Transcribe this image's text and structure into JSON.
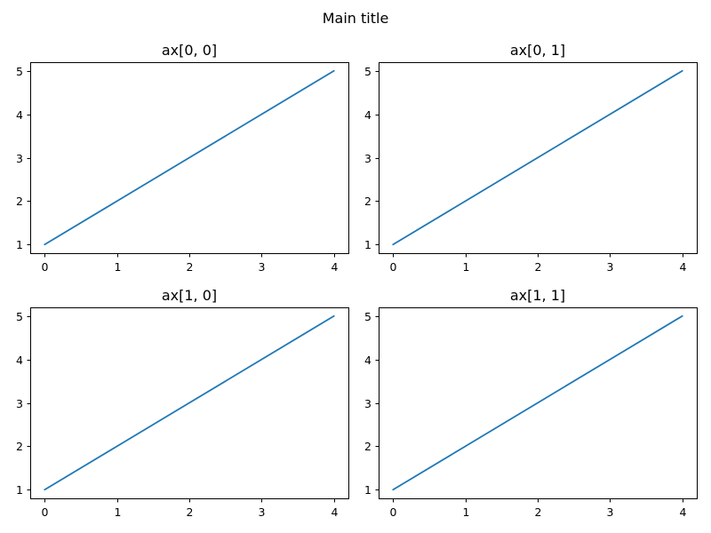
{
  "suptitle": "Main title",
  "chart_data": [
    {
      "type": "line",
      "title": "ax[0, 0]",
      "xlabel": "",
      "ylabel": "",
      "x": [
        0,
        1,
        2,
        3,
        4
      ],
      "series": [
        {
          "values": [
            1,
            2,
            3,
            4,
            5
          ],
          "color": "#1f77b4"
        }
      ],
      "xticks": [
        0,
        1,
        2,
        3,
        4
      ],
      "yticks": [
        1,
        2,
        3,
        4,
        5
      ],
      "xlim": [
        -0.2,
        4.2
      ],
      "ylim": [
        0.8,
        5.2
      ],
      "grid": false
    },
    {
      "type": "line",
      "title": "ax[0, 1]",
      "xlabel": "",
      "ylabel": "",
      "x": [
        0,
        1,
        2,
        3,
        4
      ],
      "series": [
        {
          "values": [
            1,
            2,
            3,
            4,
            5
          ],
          "color": "#1f77b4"
        }
      ],
      "xticks": [
        0,
        1,
        2,
        3,
        4
      ],
      "yticks": [
        1,
        2,
        3,
        4,
        5
      ],
      "xlim": [
        -0.2,
        4.2
      ],
      "ylim": [
        0.8,
        5.2
      ],
      "grid": false
    },
    {
      "type": "line",
      "title": "ax[1, 0]",
      "xlabel": "",
      "ylabel": "",
      "x": [
        0,
        1,
        2,
        3,
        4
      ],
      "series": [
        {
          "values": [
            1,
            2,
            3,
            4,
            5
          ],
          "color": "#1f77b4"
        }
      ],
      "xticks": [
        0,
        1,
        2,
        3,
        4
      ],
      "yticks": [
        1,
        2,
        3,
        4,
        5
      ],
      "xlim": [
        -0.2,
        4.2
      ],
      "ylim": [
        0.8,
        5.2
      ],
      "grid": false
    },
    {
      "type": "line",
      "title": "ax[1, 1]",
      "xlabel": "",
      "ylabel": "",
      "x": [
        0,
        1,
        2,
        3,
        4
      ],
      "series": [
        {
          "values": [
            1,
            2,
            3,
            4,
            5
          ],
          "color": "#1f77b4"
        }
      ],
      "xticks": [
        0,
        1,
        2,
        3,
        4
      ],
      "yticks": [
        1,
        2,
        3,
        4,
        5
      ],
      "xlim": [
        -0.2,
        4.2
      ],
      "ylim": [
        0.8,
        5.2
      ],
      "grid": false
    }
  ]
}
